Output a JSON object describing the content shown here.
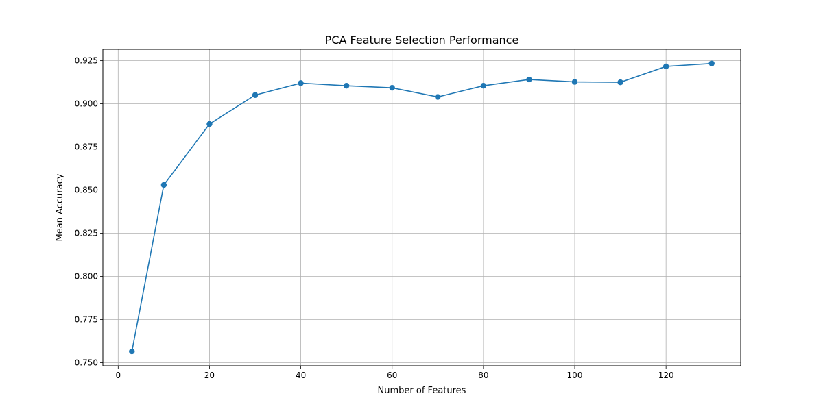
{
  "chart_data": {
    "type": "line",
    "title": "PCA Feature Selection Performance",
    "xlabel": "Number of Features",
    "ylabel": "Mean Accuracy",
    "xlim": [
      -3.35,
      136.35
    ],
    "ylim": [
      0.7482,
      0.9316
    ],
    "xticks": [
      0,
      20,
      40,
      60,
      80,
      100,
      120
    ],
    "xtick_labels": [
      "0",
      "20",
      "40",
      "60",
      "80",
      "100",
      "120"
    ],
    "yticks": [
      0.75,
      0.775,
      0.8,
      0.825,
      0.85,
      0.875,
      0.9,
      0.925
    ],
    "ytick_labels": [
      "0.750",
      "0.775",
      "0.800",
      "0.825",
      "0.850",
      "0.875",
      "0.900",
      "0.925"
    ],
    "grid": true,
    "legend": "none",
    "colors": {
      "line": "#1f77b4",
      "grid": "#b0b0b0",
      "axes": "#000000"
    },
    "series": [
      {
        "x": [
          3,
          10,
          20,
          30,
          40,
          50,
          60,
          70,
          80,
          90,
          100,
          110,
          120,
          130
        ],
        "y": [
          0.7565,
          0.853,
          0.8883,
          0.9051,
          0.912,
          0.9105,
          0.9093,
          0.904,
          0.9105,
          0.9141,
          0.9127,
          0.9125,
          0.9217,
          0.9234
        ]
      }
    ]
  }
}
